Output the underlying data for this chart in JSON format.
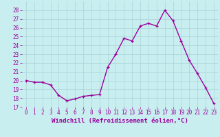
{
  "x": [
    0,
    1,
    2,
    3,
    4,
    5,
    6,
    7,
    8,
    9,
    10,
    11,
    12,
    13,
    14,
    15,
    16,
    17,
    18,
    19,
    20,
    21,
    22,
    23
  ],
  "y": [
    20.0,
    19.8,
    19.8,
    19.5,
    18.3,
    17.7,
    17.9,
    18.2,
    18.3,
    18.4,
    21.5,
    23.0,
    24.8,
    24.5,
    26.2,
    26.5,
    26.2,
    28.0,
    26.8,
    24.5,
    22.3,
    20.8,
    19.2,
    17.4
  ],
  "line_color": "#9b009b",
  "marker_color": "#9b009b",
  "bg_color": "#c8eef0",
  "grid_color": "#b0d8da",
  "xlabel": "Windchill (Refroidissement éolien,°C)",
  "ylim": [
    17,
    29
  ],
  "xlim": [
    -0.5,
    23.5
  ],
  "yticks": [
    17,
    18,
    19,
    20,
    21,
    22,
    23,
    24,
    25,
    26,
    27,
    28
  ],
  "xticks": [
    0,
    1,
    2,
    3,
    4,
    5,
    6,
    7,
    8,
    9,
    10,
    11,
    12,
    13,
    14,
    15,
    16,
    17,
    18,
    19,
    20,
    21,
    22,
    23
  ],
  "tick_fontsize": 5.5,
  "xlabel_fontsize": 6.5,
  "marker_size": 3,
  "line_width": 1.0
}
